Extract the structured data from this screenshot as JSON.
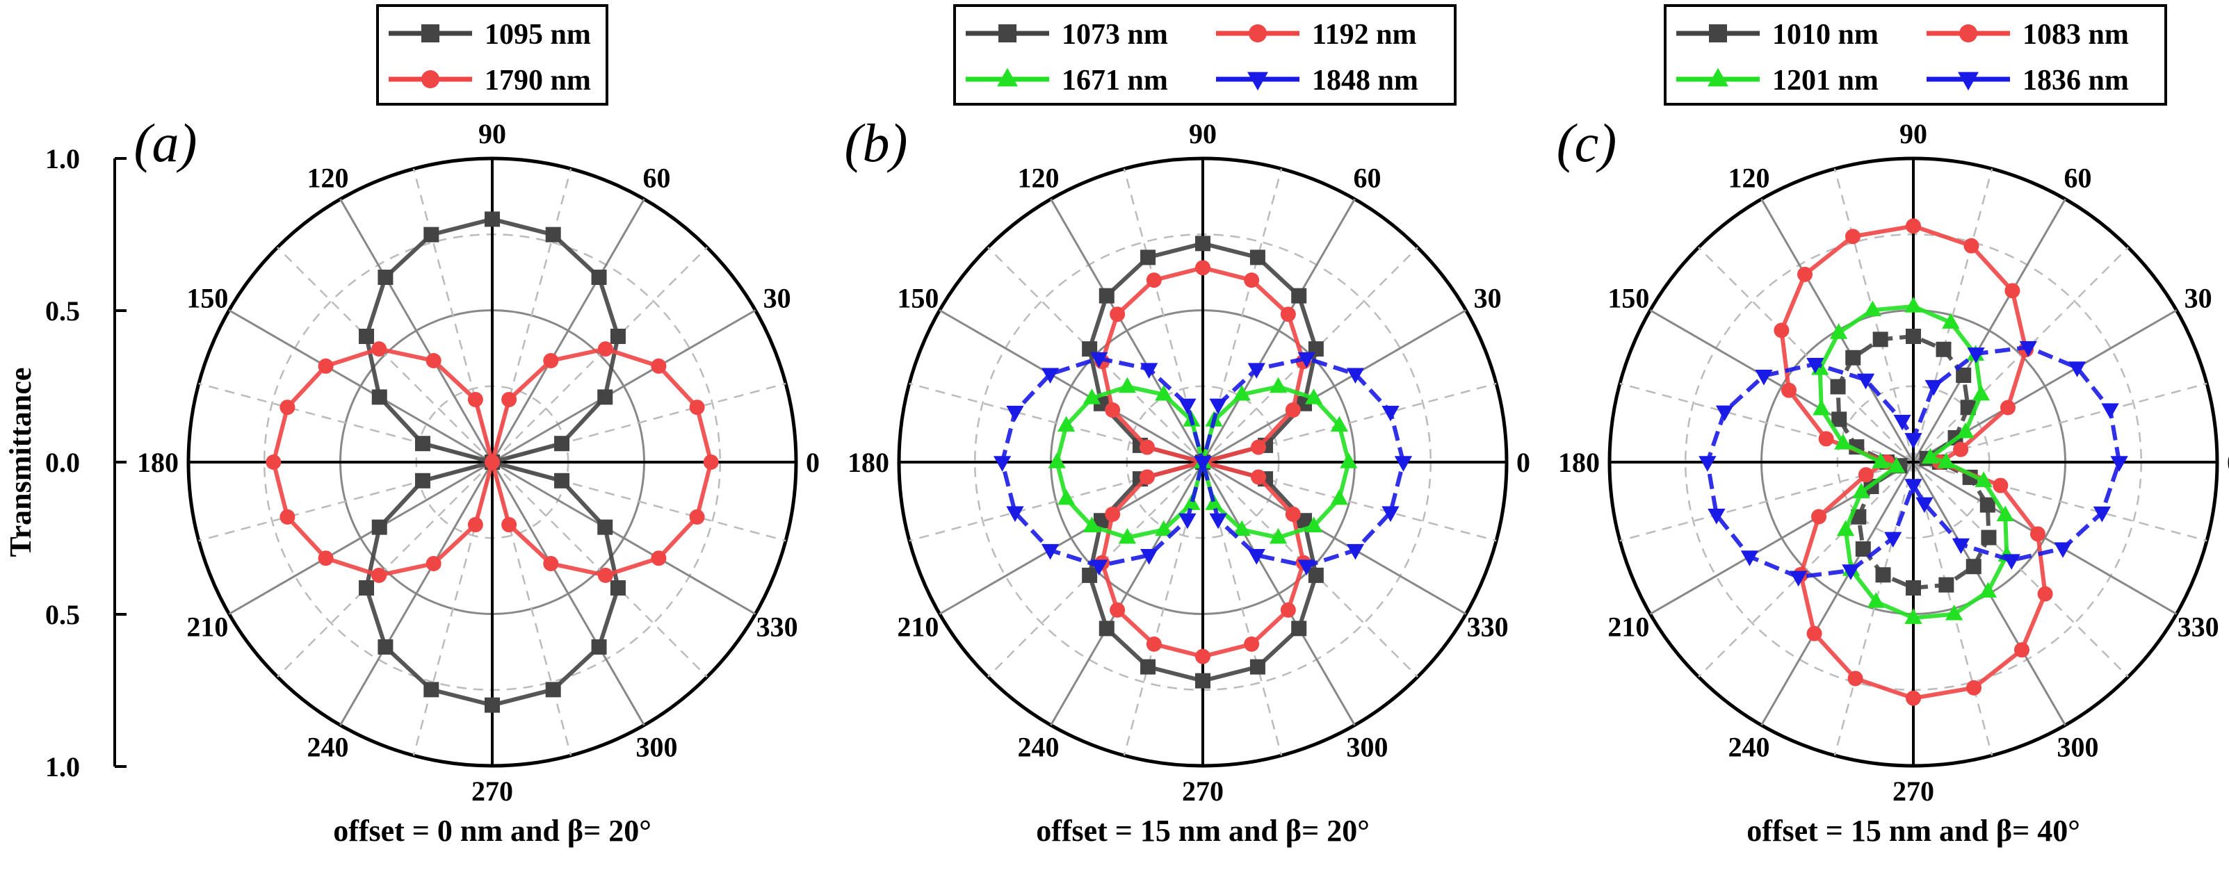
{
  "y_axis": {
    "label": "Transmittance",
    "ticks": [
      "1.0",
      "0.5",
      "0.0",
      "0.5",
      "1.0"
    ]
  },
  "angle_labels": [
    "0",
    "30",
    "60",
    "90",
    "120",
    "150",
    "180",
    "210",
    "240",
    "270",
    "300",
    "330"
  ],
  "colors": {
    "black": "#444444",
    "red": "#f04545",
    "green": "#22e022",
    "blue": "#1a1ae6"
  },
  "chart_data": [
    {
      "type": "polar-line",
      "panel": "(a)",
      "caption": "offset = 0 nm and β= 20°",
      "radial_range": [
        0,
        1
      ],
      "angle_unit": "degrees",
      "angle_step": 15,
      "series": [
        {
          "name": "1095 nm",
          "color": "black",
          "marker": "square",
          "dashed": false,
          "peak": 0.8,
          "peak_angle": 90
        },
        {
          "name": "1790 nm",
          "color": "red",
          "marker": "circle",
          "dashed": false,
          "peak": 0.72,
          "peak_angle": 0
        }
      ]
    },
    {
      "type": "polar-line",
      "panel": "(b)",
      "caption": "offset = 15 nm and β= 20°",
      "radial_range": [
        0,
        1
      ],
      "angle_unit": "degrees",
      "angle_step": 15,
      "series": [
        {
          "name": "1073 nm",
          "color": "black",
          "marker": "square",
          "dashed": false,
          "peak": 0.72,
          "peak_angle": 90
        },
        {
          "name": "1192 nm",
          "color": "red",
          "marker": "circle",
          "dashed": false,
          "peak": 0.64,
          "peak_angle": 90
        },
        {
          "name": "1671 nm",
          "color": "green",
          "marker": "triangle-up",
          "dashed": false,
          "peak": 0.48,
          "peak_angle": 0
        },
        {
          "name": "1848 nm",
          "color": "blue",
          "marker": "triangle-down",
          "dashed": true,
          "peak": 0.66,
          "peak_angle": 0
        }
      ]
    },
    {
      "type": "polar-line",
      "panel": "(c)",
      "caption": "offset = 15 nm and β= 40°",
      "radial_range": [
        0,
        1
      ],
      "angle_unit": "degrees",
      "angle_step": 15,
      "series": [
        {
          "name": "1010 nm",
          "color": "black",
          "marker": "square",
          "dashed": true,
          "peak": 0.42,
          "peak_angle": 100
        },
        {
          "name": "1083 nm",
          "color": "red",
          "marker": "circle",
          "dashed": false,
          "peak": 0.78,
          "peak_angle": 95
        },
        {
          "name": "1201 nm",
          "color": "green",
          "marker": "triangle-up",
          "dashed": false,
          "peak": 0.52,
          "peak_angle": 100
        },
        {
          "name": "1836 nm",
          "color": "blue",
          "marker": "triangle-down",
          "dashed": true,
          "peak": 0.68,
          "peak_angle": 5
        }
      ]
    }
  ]
}
